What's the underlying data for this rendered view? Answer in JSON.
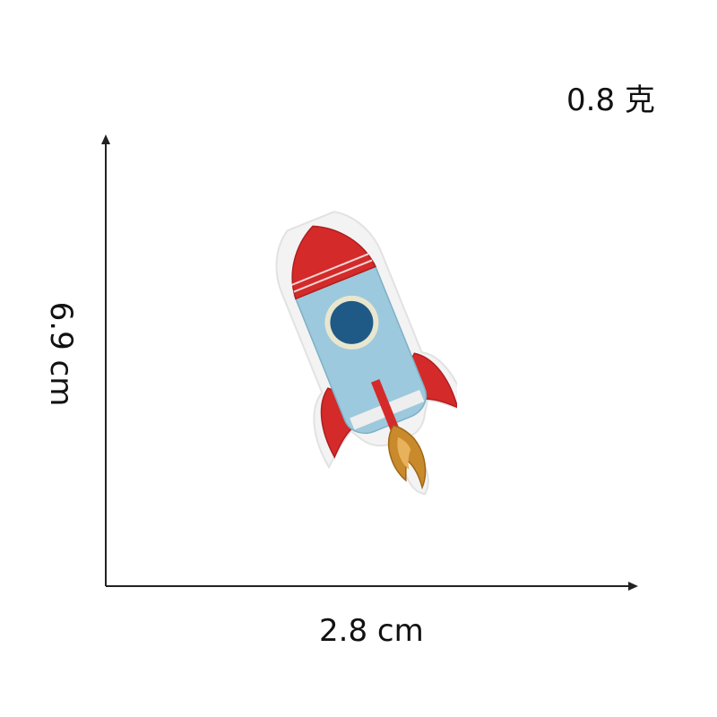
{
  "labels": {
    "weight": "0.8 克",
    "width": "2.8 cm",
    "height": "6.9 cm"
  },
  "images": {
    "product": "rocket-embroidered-patch"
  },
  "colors": {
    "rocket_red": "#d42a2a",
    "rocket_body": "#9cc9dd",
    "window_blue": "#1f5a86",
    "flame_gold": "#c98a2c",
    "axis": "#222222"
  }
}
